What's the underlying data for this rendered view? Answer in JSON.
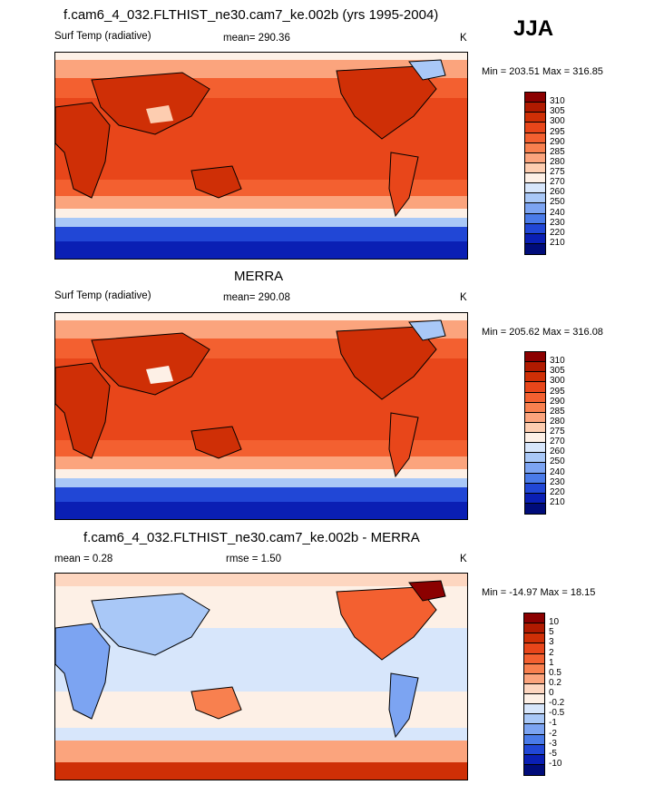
{
  "season": "JJA",
  "panels": [
    {
      "title": "f.cam6_4_032.FLTHIST_ne30.cam7_ke.002b (yrs 1995-2004)",
      "left_label": "Surf Temp (radiative)",
      "center_label": "mean= 290.36",
      "units": "K",
      "minmax": "Min = 203.51 Max = 316.85",
      "colorbar_labels": [
        "310",
        "305",
        "300",
        "295",
        "290",
        "285",
        "280",
        "275",
        "270",
        "260",
        "250",
        "240",
        "230",
        "220",
        "210"
      ],
      "colorbar_colors": [
        "#8b0000",
        "#b01a00",
        "#cf2f06",
        "#e8461a",
        "#f36030",
        "#f8804f",
        "#fba47d",
        "#fdcdb0",
        "#fdf0e6",
        "#d7e6fb",
        "#a9c8f7",
        "#7ca4f2",
        "#4a7be9",
        "#2147d6",
        "#0a1fb4",
        "#000c7a"
      ]
    },
    {
      "title": "MERRA",
      "left_label": "Surf Temp (radiative)",
      "center_label": "mean= 290.08",
      "units": "K",
      "minmax": "Min = 205.62 Max = 316.08",
      "colorbar_labels": [
        "310",
        "305",
        "300",
        "295",
        "290",
        "285",
        "280",
        "275",
        "270",
        "260",
        "250",
        "240",
        "230",
        "220",
        "210"
      ],
      "colorbar_colors": [
        "#8b0000",
        "#b01a00",
        "#cf2f06",
        "#e8461a",
        "#f36030",
        "#f8804f",
        "#fba47d",
        "#fdcdb0",
        "#fdf0e6",
        "#d7e6fb",
        "#a9c8f7",
        "#7ca4f2",
        "#4a7be9",
        "#2147d6",
        "#0a1fb4",
        "#000c7a"
      ]
    },
    {
      "title": "f.cam6_4_032.FLTHIST_ne30.cam7_ke.002b - MERRA",
      "left_label": "mean =   0.28",
      "center_label": "rmse =   1.50",
      "units": "K",
      "minmax": "Min = -14.97 Max =  18.15",
      "colorbar_labels": [
        "10",
        "5",
        "3",
        "2",
        "1",
        "0.5",
        "0.2",
        "0",
        "-0.2",
        "-0.5",
        "-1",
        "-2",
        "-3",
        "-5",
        "-10"
      ],
      "colorbar_colors": [
        "#8b0000",
        "#b01a00",
        "#cf2f06",
        "#e8461a",
        "#f36030",
        "#f8804f",
        "#fba47d",
        "#fdd6c0",
        "#fdf0e6",
        "#d7e6fb",
        "#a9c8f7",
        "#7ca4f2",
        "#4a7be9",
        "#2147d6",
        "#0a1fb4",
        "#000c7a"
      ]
    }
  ],
  "chart_data": [
    {
      "type": "heatmap",
      "title": "f.cam6_4_032.FLTHIST_ne30.cam7_ke.002b (yrs 1995-2004)",
      "variable": "Surf Temp (radiative)",
      "units": "K",
      "mean": 290.36,
      "min": 203.51,
      "max": 316.85,
      "contour_levels": [
        210,
        220,
        230,
        240,
        250,
        260,
        270,
        275,
        280,
        285,
        290,
        295,
        300,
        305,
        310
      ],
      "projection": "global cylindrical equidistant, Pacific-centered"
    },
    {
      "type": "heatmap",
      "title": "MERRA",
      "variable": "Surf Temp (radiative)",
      "units": "K",
      "mean": 290.08,
      "min": 205.62,
      "max": 316.08,
      "contour_levels": [
        210,
        220,
        230,
        240,
        250,
        260,
        270,
        275,
        280,
        285,
        290,
        295,
        300,
        305,
        310
      ],
      "projection": "global cylindrical equidistant, Pacific-centered"
    },
    {
      "type": "heatmap",
      "title": "f.cam6_4_032.FLTHIST_ne30.cam7_ke.002b - MERRA",
      "units": "K",
      "mean": 0.28,
      "rmse": 1.5,
      "min": -14.97,
      "max": 18.15,
      "contour_levels": [
        -10,
        -5,
        -3,
        -2,
        -1,
        -0.5,
        -0.2,
        0,
        0.2,
        0.5,
        1,
        2,
        3,
        5,
        10
      ],
      "projection": "global cylindrical equidistant, Pacific-centered"
    }
  ]
}
